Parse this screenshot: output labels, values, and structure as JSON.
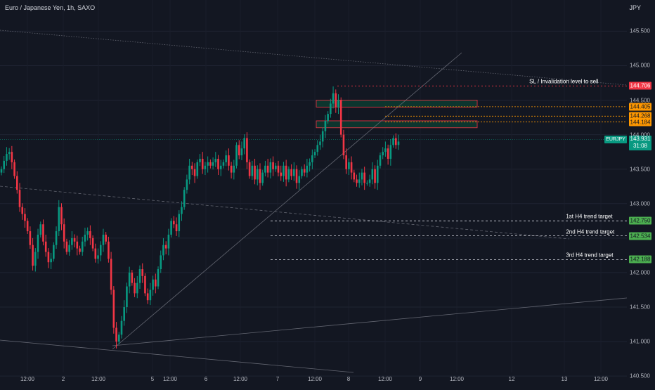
{
  "header": {
    "symbol_title": "Euro / Japanese Yen, 1h, SAXO",
    "currency": "JPY"
  },
  "price_axis": {
    "ticks": [
      "145.500",
      "145.000",
      "144.500",
      "144.000",
      "143.500",
      "143.000",
      "142.500",
      "142.000",
      "141.500",
      "141.000",
      "140.500"
    ]
  },
  "time_axis": {
    "ticks": [
      "12:00",
      "2",
      "12:00",
      "5",
      "12:00",
      "6",
      "12:00",
      "7",
      "12:00",
      "8",
      "12:00",
      "9",
      "12:00",
      "12",
      "13",
      "12:00"
    ]
  },
  "levels": [
    {
      "label": "SL / Invalidation level to sell",
      "value": "144.706",
      "kind": "red"
    },
    {
      "label": "",
      "value": "144.405",
      "kind": "orange"
    },
    {
      "label": "",
      "value": "144.268",
      "kind": "orange"
    },
    {
      "label": "",
      "value": "144.184",
      "kind": "orange"
    },
    {
      "label": "1st H4 trend target",
      "value": "142.750",
      "kind": "green"
    },
    {
      "label": "2nd H4 trend target",
      "value": "142.534",
      "kind": "green"
    },
    {
      "label": "3rd H4 trend target",
      "value": "142.188",
      "kind": "green"
    }
  ],
  "current": {
    "symbol": "EURJPY",
    "price": "143.931",
    "countdown": "31:08"
  },
  "colors": {
    "background": "#131722",
    "up": "#089981",
    "down": "#f23645",
    "level_red": "#f23645",
    "level_orange": "#ff9800",
    "level_green": "#4caf50",
    "zone_fill": "#0d3b30",
    "zone_border": "#f23645"
  },
  "chart_data": {
    "type": "candlestick",
    "instrument": "Euro / Japanese Yen",
    "timeframe": "1h",
    "y_range": [
      140.4,
      145.85
    ],
    "y_axis_ticks": [
      140.5,
      141.0,
      141.5,
      142.0,
      142.5,
      143.0,
      143.5,
      144.0,
      144.5,
      145.0,
      145.5
    ],
    "x_tick_labels": [
      "12:00",
      "2",
      "12:00",
      "5",
      "12:00",
      "6",
      "12:00",
      "7",
      "12:00",
      "8",
      "12:00",
      "9",
      "12:00",
      "12",
      "13",
      "12:00"
    ],
    "horizontal_levels": [
      144.706,
      144.405,
      144.268,
      144.184,
      142.75,
      142.534,
      142.188
    ],
    "supply_zones": [
      [
        144.4,
        144.5
      ],
      [
        144.1,
        144.2
      ]
    ],
    "closes": [
      143.5,
      143.62,
      143.72,
      143.75,
      143.6,
      143.4,
      143.2,
      142.95,
      142.85,
      142.75,
      142.6,
      142.4,
      142.1,
      142.3,
      142.55,
      142.7,
      142.45,
      142.3,
      142.15,
      142.2,
      142.4,
      142.6,
      142.95,
      142.7,
      142.45,
      142.3,
      142.4,
      142.5,
      142.45,
      142.35,
      142.3,
      142.45,
      142.55,
      142.6,
      142.5,
      142.35,
      142.2,
      142.25,
      142.4,
      142.55,
      142.45,
      142.2,
      141.75,
      141.2,
      141.0,
      141.1,
      141.3,
      141.5,
      141.8,
      142.0,
      141.85,
      141.7,
      141.85,
      142.05,
      141.95,
      141.7,
      141.6,
      141.75,
      141.9,
      141.8,
      142.05,
      142.25,
      142.4,
      142.35,
      142.55,
      142.75,
      142.7,
      142.6,
      142.85,
      142.95,
      143.2,
      143.35,
      143.55,
      143.5,
      143.4,
      143.6,
      143.65,
      143.5,
      143.55,
      143.6,
      143.55,
      143.6,
      143.65,
      143.5,
      143.55,
      143.6,
      143.7,
      143.55,
      143.45,
      143.55,
      143.85,
      143.7,
      143.8,
      143.95,
      143.6,
      143.4,
      143.55,
      143.35,
      143.5,
      143.3,
      143.45,
      143.55,
      143.45,
      143.6,
      143.5,
      143.55,
      143.45,
      143.4,
      143.55,
      143.35,
      143.5,
      143.4,
      143.5,
      143.3,
      143.4,
      143.5,
      143.45,
      143.55,
      143.6,
      143.7,
      143.75,
      143.85,
      143.9,
      144.05,
      144.2,
      144.3,
      144.45,
      144.6,
      144.4,
      144.5,
      144.0,
      143.7,
      143.5,
      143.6,
      143.45,
      143.35,
      143.3,
      143.35,
      143.45,
      143.3,
      143.3,
      143.35,
      143.5,
      143.3,
      143.55,
      143.7,
      143.75,
      143.8,
      143.65,
      143.85,
      143.95,
      143.85,
      143.9
    ]
  }
}
